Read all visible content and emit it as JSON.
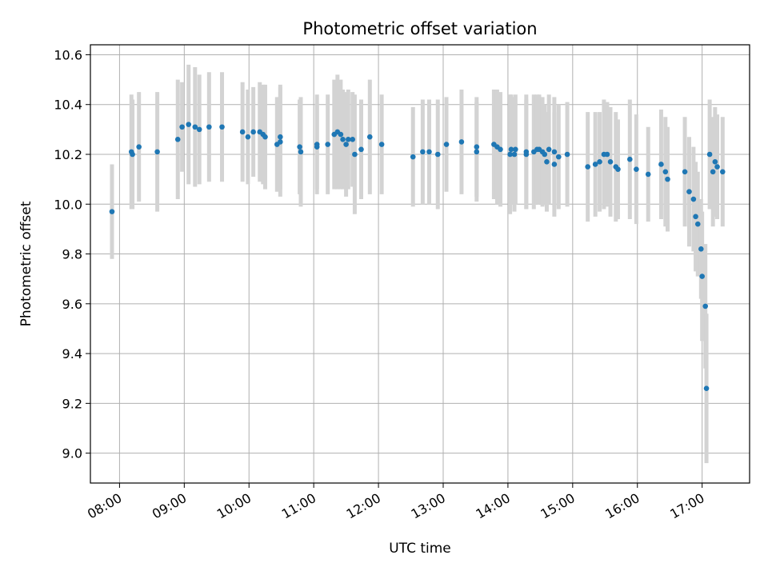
{
  "chart_data": {
    "type": "scatter",
    "title": "Photometric offset variation",
    "xlabel": "UTC time",
    "ylabel": "Photometric offset",
    "x_unit": "hours UTC",
    "xlim": [
      "07:33",
      "17:44"
    ],
    "ylim": [
      8.88,
      10.64
    ],
    "grid": true,
    "x_ticks": [
      "08:00",
      "09:00",
      "10:00",
      "11:00",
      "12:00",
      "13:00",
      "14:00",
      "15:00",
      "16:00",
      "17:00"
    ],
    "y_ticks": [
      "9.0",
      "9.2",
      "9.4",
      "9.6",
      "9.8",
      "10.0",
      "10.2",
      "10.4",
      "10.6"
    ],
    "colors": {
      "marker": "#1f77b4",
      "errorbar": "#d3d3d3",
      "grid": "#b0b0b0"
    },
    "series": [
      {
        "x": [
          "07:53",
          "08:11",
          "08:12",
          "08:18",
          "08:35",
          "08:54",
          "08:58",
          "09:04",
          "09:10",
          "09:14",
          "09:23",
          "09:35",
          "09:54",
          "09:59",
          "10:04",
          "10:10",
          "10:13",
          "10:15",
          "10:26",
          "10:29",
          "10:29",
          "10:47",
          "10:48",
          "11:03",
          "11:03",
          "11:13",
          "11:19",
          "11:22",
          "11:25",
          "11:27",
          "11:30",
          "11:32",
          "11:36",
          "11:38",
          "11:44",
          "11:52",
          "12:03",
          "12:32",
          "12:41",
          "12:47",
          "12:55",
          "13:03",
          "13:17",
          "13:31",
          "13:31",
          "13:47",
          "13:50",
          "13:53",
          "14:02",
          "14:03",
          "14:06",
          "14:07",
          "14:17",
          "14:17",
          "14:24",
          "14:27",
          "14:29",
          "14:32",
          "14:34",
          "14:36",
          "14:38",
          "14:43",
          "14:43",
          "14:47",
          "14:55",
          "15:14",
          "15:21",
          "15:25",
          "15:29",
          "15:32",
          "15:35",
          "15:40",
          "15:42",
          "15:53",
          "15:59",
          "16:10",
          "16:22",
          "16:26",
          "16:28",
          "16:44",
          "16:48",
          "16:52",
          "16:54",
          "16:56",
          "16:59",
          "17:00",
          "17:03",
          "17:04",
          "17:07",
          "17:10",
          "17:12",
          "17:14",
          "17:19"
        ],
        "y": [
          9.97,
          10.21,
          10.2,
          10.23,
          10.21,
          10.26,
          10.31,
          10.32,
          10.31,
          10.3,
          10.31,
          10.31,
          10.29,
          10.27,
          10.29,
          10.29,
          10.28,
          10.27,
          10.24,
          10.25,
          10.27,
          10.23,
          10.21,
          10.24,
          10.23,
          10.24,
          10.28,
          10.29,
          10.28,
          10.26,
          10.24,
          10.26,
          10.26,
          10.2,
          10.22,
          10.27,
          10.24,
          10.19,
          10.21,
          10.21,
          10.2,
          10.24,
          10.25,
          10.21,
          10.23,
          10.24,
          10.23,
          10.22,
          10.2,
          10.22,
          10.2,
          10.22,
          10.2,
          10.21,
          10.21,
          10.22,
          10.22,
          10.21,
          10.2,
          10.17,
          10.22,
          10.21,
          10.16,
          10.19,
          10.2,
          10.15,
          10.16,
          10.17,
          10.2,
          10.2,
          10.17,
          10.15,
          10.14,
          10.18,
          10.14,
          10.12,
          10.16,
          10.13,
          10.1,
          10.13,
          10.05,
          10.02,
          9.95,
          9.92,
          9.82,
          9.71,
          9.59,
          9.26,
          10.2,
          10.13,
          10.17,
          10.15,
          10.13
        ],
        "err": [
          0.19,
          0.23,
          0.22,
          0.22,
          0.24,
          0.24,
          0.18,
          0.24,
          0.24,
          0.22,
          0.22,
          0.22,
          0.2,
          0.19,
          0.18,
          0.2,
          0.2,
          0.21,
          0.19,
          0.22,
          0.21,
          0.19,
          0.22,
          0.2,
          0.17,
          0.2,
          0.22,
          0.23,
          0.22,
          0.2,
          0.21,
          0.2,
          0.19,
          0.24,
          0.2,
          0.23,
          0.2,
          0.2,
          0.21,
          0.21,
          0.22,
          0.19,
          0.21,
          0.2,
          0.2,
          0.22,
          0.23,
          0.23,
          0.24,
          0.22,
          0.23,
          0.22,
          0.22,
          0.23,
          0.23,
          0.22,
          0.22,
          0.22,
          0.2,
          0.2,
          0.22,
          0.22,
          0.21,
          0.21,
          0.21,
          0.22,
          0.21,
          0.2,
          0.22,
          0.21,
          0.22,
          0.22,
          0.2,
          0.24,
          0.22,
          0.19,
          0.22,
          0.22,
          0.21,
          0.22,
          0.22,
          0.21,
          0.22,
          0.21,
          0.2,
          0.26,
          0.25,
          0.3,
          0.22,
          0.22,
          0.22,
          0.21,
          0.22
        ]
      }
    ]
  }
}
